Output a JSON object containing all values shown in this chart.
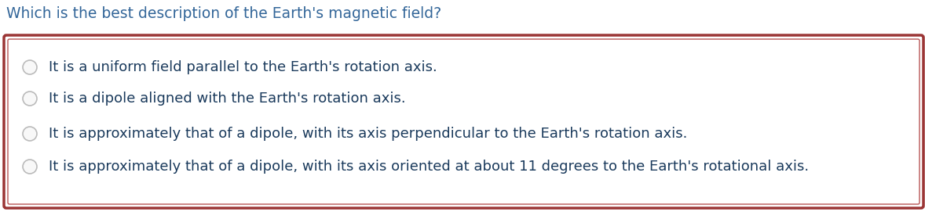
{
  "question": "Which is the best description of the Earth's magnetic field?",
  "options": [
    "It is a uniform field parallel to the Earth's rotation axis.",
    "It is a dipole aligned with the Earth's rotation axis.",
    "It is approximately that of a dipole, with its axis perpendicular to the Earth's rotation axis.",
    "It is approximately that of a dipole, with its axis oriented at about 11 degrees to the Earth's rotational axis."
  ],
  "question_color": "#336699",
  "option_color": "#1a3a5c",
  "background_color": "#ffffff",
  "box_fill_color": "#ffffff",
  "box_border_outer_color": "#9b3535",
  "box_border_inner_color": "#b85555",
  "radio_border_color": "#bbbbbb",
  "radio_fill_color": "#f8f8f8",
  "question_fontsize": 13.5,
  "option_fontsize": 13.0,
  "figsize": [
    11.78,
    2.71
  ],
  "dpi": 100
}
